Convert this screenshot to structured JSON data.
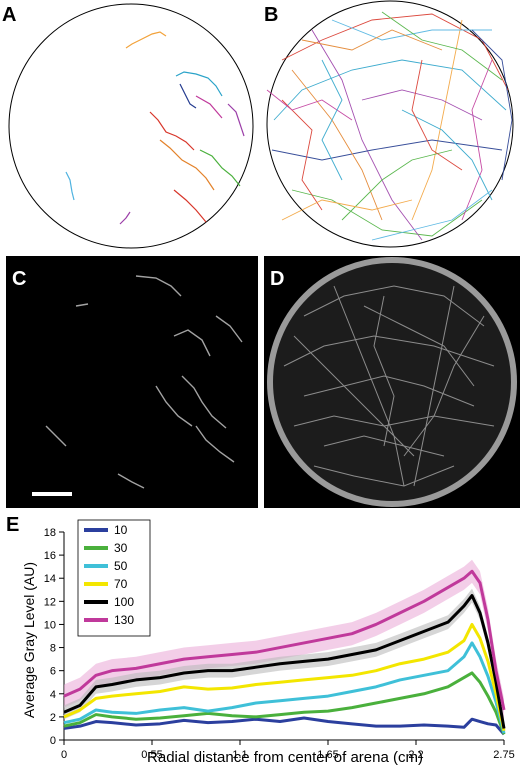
{
  "panels": {
    "a": "A",
    "b": "B",
    "c": "C",
    "d": "D",
    "e": "E"
  },
  "chart_data": {
    "type": "line",
    "title": "",
    "xlabel": "Radial distance from center of arena (cm)",
    "ylabel": "Average Gray Level (AU)",
    "xlim": [
      0,
      2.75
    ],
    "ylim": [
      0,
      18
    ],
    "x_ticks": [
      "0",
      "0.55",
      "1.1",
      "1.65",
      "2.2",
      "2.75"
    ],
    "y_ticks": [
      "0",
      "2",
      "4",
      "6",
      "8",
      "10",
      "12",
      "14",
      "16",
      "18"
    ],
    "grid": false,
    "legend": "top-left",
    "x": [
      0.0,
      0.1,
      0.2,
      0.3,
      0.45,
      0.6,
      0.75,
      0.9,
      1.05,
      1.2,
      1.35,
      1.5,
      1.65,
      1.8,
      1.95,
      2.1,
      2.25,
      2.4,
      2.5,
      2.55,
      2.6,
      2.65,
      2.7,
      2.75
    ],
    "series": [
      {
        "name": "10",
        "color": "#2b3f9e",
        "values": [
          1.0,
          1.2,
          1.6,
          1.5,
          1.3,
          1.4,
          1.7,
          1.5,
          1.6,
          1.8,
          1.6,
          1.9,
          1.6,
          1.4,
          1.2,
          1.2,
          1.3,
          1.2,
          1.1,
          1.8,
          1.6,
          1.4,
          1.3,
          0.5
        ]
      },
      {
        "name": "30",
        "color": "#4ab03c",
        "values": [
          1.2,
          1.5,
          2.2,
          2.0,
          1.8,
          1.9,
          2.1,
          2.3,
          2.1,
          2.0,
          2.2,
          2.4,
          2.5,
          2.8,
          3.2,
          3.6,
          4.0,
          4.6,
          5.4,
          5.8,
          5.0,
          3.8,
          2.4,
          0.5
        ]
      },
      {
        "name": "50",
        "color": "#3fc0d8",
        "values": [
          1.5,
          1.8,
          2.6,
          2.4,
          2.3,
          2.6,
          2.8,
          2.5,
          2.8,
          3.2,
          3.4,
          3.6,
          3.8,
          4.2,
          4.6,
          5.2,
          5.6,
          6.0,
          7.2,
          8.4,
          7.2,
          5.5,
          3.3,
          0.6
        ]
      },
      {
        "name": "70",
        "color": "#f3e600",
        "values": [
          2.0,
          2.6,
          3.6,
          3.8,
          4.0,
          4.2,
          4.6,
          4.4,
          4.5,
          4.8,
          5.0,
          5.2,
          5.4,
          5.6,
          6.0,
          6.6,
          7.0,
          7.6,
          8.6,
          10.0,
          8.8,
          6.8,
          4.0,
          0.8
        ]
      },
      {
        "name": "100",
        "color": "#000000",
        "values": [
          2.4,
          3.0,
          4.6,
          4.8,
          5.2,
          5.4,
          5.8,
          6.0,
          6.0,
          6.3,
          6.6,
          6.8,
          7.0,
          7.4,
          7.8,
          8.6,
          9.4,
          10.2,
          11.6,
          12.5,
          11.0,
          8.4,
          5.0,
          1.0
        ]
      },
      {
        "name": "130",
        "color": "#c0399b",
        "values": [
          3.8,
          4.4,
          5.6,
          6.0,
          6.2,
          6.6,
          7.0,
          7.2,
          7.4,
          7.6,
          8.0,
          8.4,
          8.8,
          9.2,
          10.0,
          11.0,
          12.0,
          13.2,
          14.0,
          14.6,
          13.6,
          10.4,
          6.0,
          2.6
        ]
      }
    ]
  }
}
